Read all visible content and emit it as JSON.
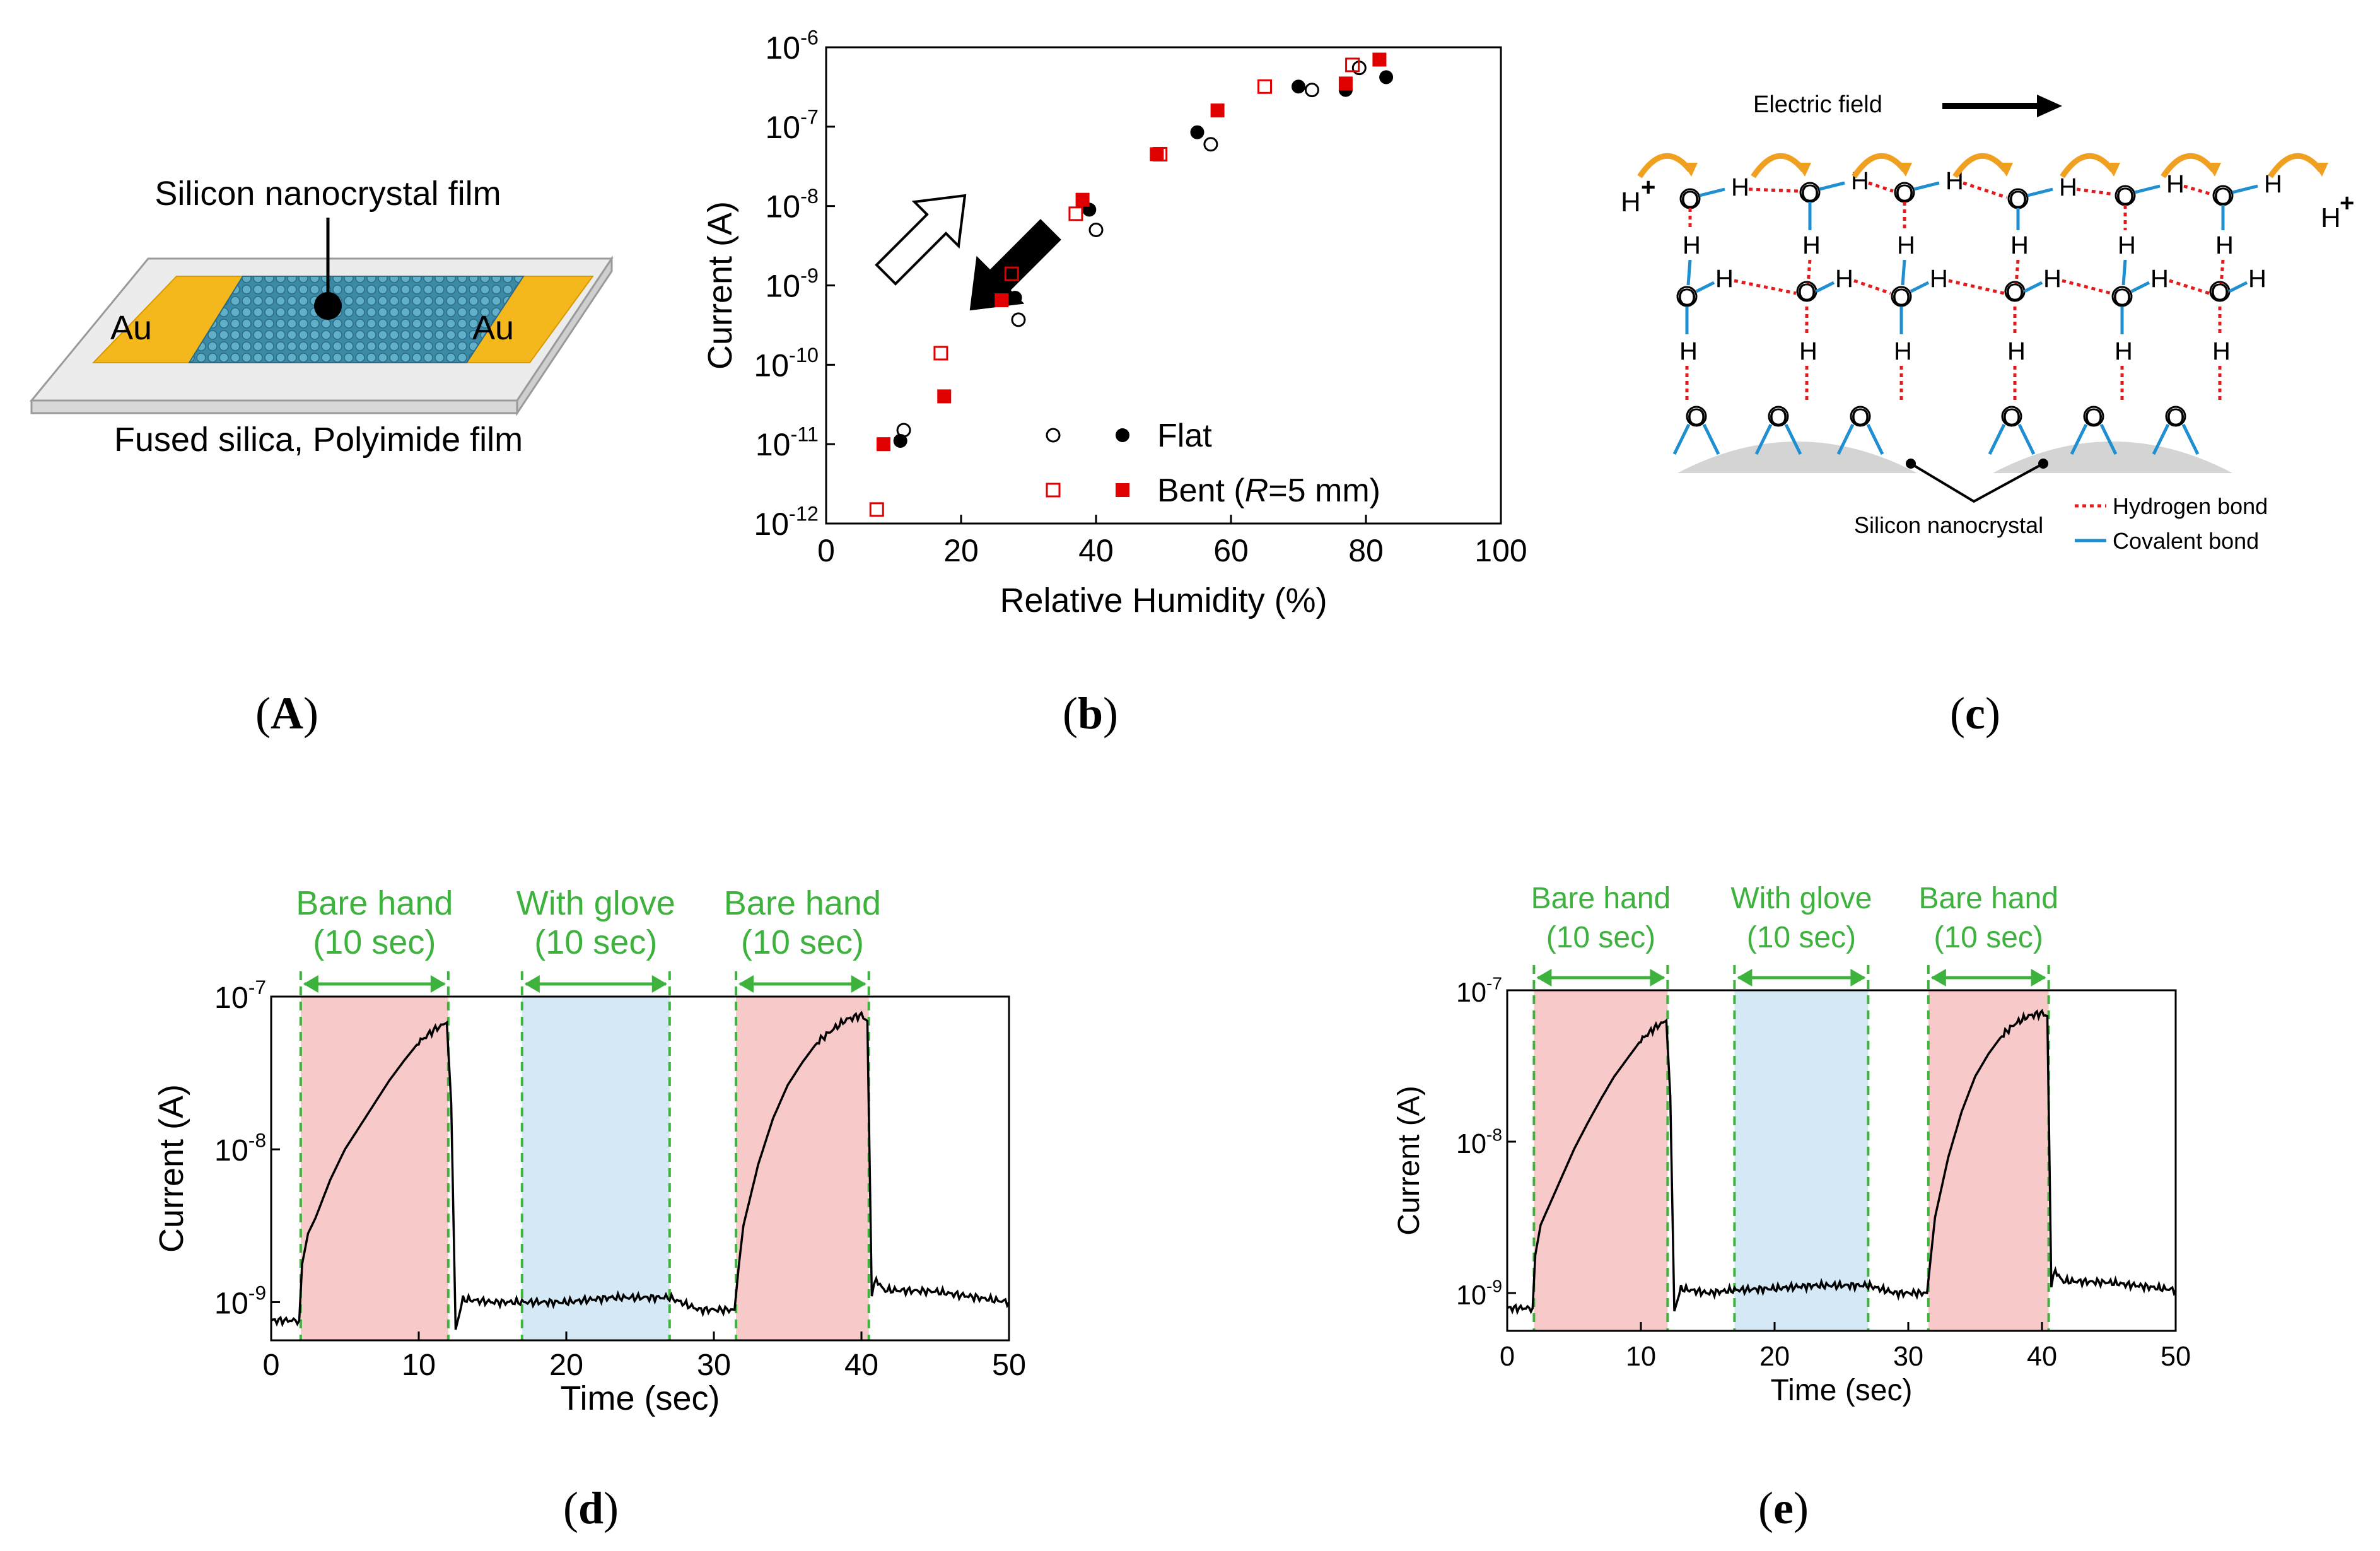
{
  "panel_a": {
    "label": "A",
    "film_label": "Silicon nanocrystal film",
    "electrode_left": "Au",
    "electrode_right": "Au",
    "substrate_label": "Fused silica, Polyimide film"
  },
  "panel_b": {
    "label": "b"
  },
  "panel_c": {
    "label": "c",
    "field_label": "Electric field",
    "proton_left": "H",
    "proton_right": "H",
    "plus": "+",
    "atom_o": "O",
    "atom_h": "H",
    "nanocrystal_label": "Silicon nanocrystal",
    "legend_hbond": "Hydrogen bond",
    "legend_covalent": "Covalent bond",
    "colors": {
      "hbond": "#e41a1c",
      "covalent": "#1f8fd1",
      "arrow": "#f0a020",
      "nanocrystal": "#d4d4d4"
    }
  },
  "panel_d": {
    "label": "d"
  },
  "panel_e": {
    "label": "e"
  },
  "chart_data": [
    {
      "id": "b",
      "type": "scatter",
      "xlabel": "Relative Humidity (%)",
      "ylabel": "Current (A)",
      "xlim": [
        0,
        100
      ],
      "ylim_log10": [
        -12,
        -6
      ],
      "yscale": "log",
      "xticks": [
        "0",
        "20",
        "40",
        "60",
        "80",
        "100"
      ],
      "ytick_exponents": [
        "-12",
        "-11",
        "-10",
        "-9",
        "-8",
        "-7",
        "-6"
      ],
      "ytick_base": "10",
      "legend": {
        "flat": "Flat",
        "bent_prefix": "Bent (",
        "bent_var": "R",
        "bent_suffix": "=5 mm)"
      },
      "colors": {
        "flat": "#000000",
        "bent": "#e00000"
      },
      "series": [
        {
          "name": "Flat",
          "marker": "filled-circle",
          "x": [
            11,
            28,
            39,
            55,
            70,
            77,
            83
          ],
          "y": [
            1.1e-11,
            7e-10,
            9e-09,
            8.5e-08,
            3.2e-07,
            2.9e-07,
            4.2e-07
          ]
        },
        {
          "name": "Flat",
          "marker": "open-circle",
          "x": [
            11.5,
            28.5,
            40,
            57,
            72,
            79
          ],
          "y": [
            1.5e-11,
            3.7e-10,
            5e-09,
            6e-08,
            2.9e-07,
            5.5e-07
          ]
        },
        {
          "name": "Bent (R=5 mm)",
          "marker": "filled-square",
          "x": [
            8.5,
            17.5,
            26,
            38,
            49,
            58,
            77,
            82
          ],
          "y": [
            1e-11,
            4e-11,
            6.5e-10,
            1.2e-08,
            4.5e-08,
            1.6e-07,
            3.5e-07,
            7e-07
          ]
        },
        {
          "name": "Bent (R=5 mm)",
          "marker": "open-square",
          "x": [
            7.5,
            17,
            27.5,
            37,
            49.5,
            65,
            78
          ],
          "y": [
            1.5e-12,
            1.4e-10,
            1.4e-09,
            8e-09,
            4.5e-08,
            3.2e-07,
            6e-07
          ]
        }
      ]
    },
    {
      "id": "d",
      "type": "line",
      "xlabel": "Time (sec)",
      "ylabel": "Current (A)",
      "xlim": [
        0,
        50
      ],
      "ylim_log10": [
        -9.25,
        -7
      ],
      "yscale": "log",
      "xticks": [
        "0",
        "10",
        "20",
        "30",
        "40",
        "50"
      ],
      "ytick_exponents": [
        "-9",
        "-8",
        "-7"
      ],
      "ytick_base": "10",
      "shaded": [
        {
          "label1": "Bare hand",
          "label2": "(10 sec)",
          "start": 2,
          "end": 12,
          "color": "#f8c9c9"
        },
        {
          "label1": "With glove",
          "label2": "(10 sec)",
          "start": 17,
          "end": 27,
          "color": "#d4e8f6"
        },
        {
          "label1": "Bare hand",
          "label2": "(10 sec)",
          "start": 31.5,
          "end": 40.5,
          "color": "#f8c9c9"
        }
      ],
      "series": [
        {
          "name": "",
          "x": [
            0,
            1.9,
            2.1,
            2.5,
            3,
            4,
            5,
            6,
            7,
            8,
            9,
            10,
            11,
            11.9,
            12.2,
            12.5,
            13,
            15,
            17,
            20,
            23,
            27,
            29,
            31.4,
            31.7,
            32,
            33,
            34,
            35,
            36,
            37,
            38,
            39,
            40,
            40.4,
            40.7,
            41,
            41.5,
            45,
            50
          ],
          "y": [
            -9.12,
            -9.12,
            -8.75,
            -8.55,
            -8.45,
            -8.2,
            -8.0,
            -7.85,
            -7.7,
            -7.55,
            -7.42,
            -7.3,
            -7.22,
            -7.17,
            -7.7,
            -9.18,
            -8.98,
            -9.0,
            -9.0,
            -9.0,
            -8.97,
            -8.97,
            -9.05,
            -9.05,
            -8.75,
            -8.5,
            -8.1,
            -7.8,
            -7.58,
            -7.43,
            -7.3,
            -7.22,
            -7.15,
            -7.12,
            -7.16,
            -8.95,
            -8.85,
            -8.92,
            -8.93,
            -9.0
          ]
        }
      ]
    },
    {
      "id": "e",
      "type": "line",
      "xlabel": "Time (sec)",
      "ylabel": "Current (A)",
      "xlim": [
        0,
        50
      ],
      "ylim_log10": [
        -9.25,
        -7
      ],
      "yscale": "log",
      "xticks": [
        "0",
        "10",
        "20",
        "30",
        "40",
        "50"
      ],
      "ytick_exponents": [
        "-9",
        "-8",
        "-7"
      ],
      "ytick_base": "10",
      "shaded": [
        {
          "label1": "Bare hand",
          "label2": "(10 sec)",
          "start": 2,
          "end": 12,
          "color": "#f8c9c9"
        },
        {
          "label1": "With glove",
          "label2": "(10 sec)",
          "start": 17,
          "end": 27,
          "color": "#d4e8f6"
        },
        {
          "label1": "Bare hand",
          "label2": "(10 sec)",
          "start": 31.5,
          "end": 40.5,
          "color": "#f8c9c9"
        }
      ],
      "series": [
        {
          "name": "",
          "x": [
            0,
            1.9,
            2.1,
            2.5,
            3,
            4,
            5,
            6,
            7,
            8,
            9,
            10,
            11,
            11.9,
            12.2,
            12.5,
            13,
            15,
            17,
            20,
            23,
            27,
            29,
            31.4,
            31.7,
            32,
            33,
            34,
            35,
            36,
            37,
            38,
            39,
            40,
            40.4,
            40.7,
            41,
            41.5,
            45,
            50
          ],
          "y": [
            -9.1,
            -9.1,
            -8.75,
            -8.55,
            -8.45,
            -8.25,
            -8.05,
            -7.88,
            -7.72,
            -7.57,
            -7.45,
            -7.33,
            -7.25,
            -7.2,
            -7.7,
            -9.12,
            -8.97,
            -9.0,
            -8.98,
            -8.97,
            -8.95,
            -8.95,
            -9.0,
            -9.0,
            -8.75,
            -8.5,
            -8.1,
            -7.8,
            -7.57,
            -7.42,
            -7.3,
            -7.22,
            -7.17,
            -7.15,
            -7.17,
            -8.95,
            -8.85,
            -8.92,
            -8.93,
            -8.98
          ]
        }
      ]
    }
  ]
}
